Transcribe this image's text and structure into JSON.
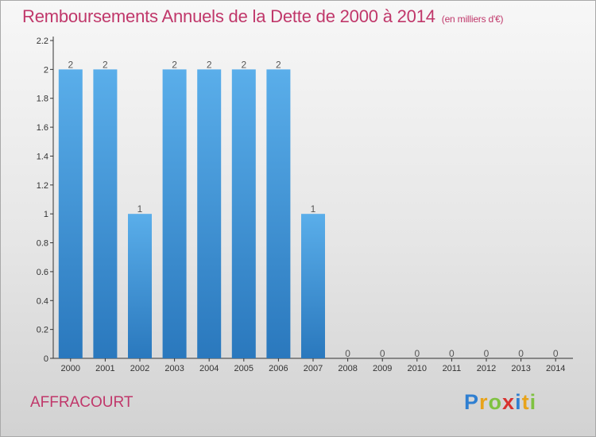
{
  "chart_data": {
    "type": "bar",
    "title": "Remboursements Annuels de la Dette de 2000 à 2014",
    "subtitle": "(en milliers d'€)",
    "xlabel": "",
    "ylabel": "",
    "categories": [
      "2000",
      "2001",
      "2002",
      "2003",
      "2004",
      "2005",
      "2006",
      "2007",
      "2008",
      "2009",
      "2010",
      "2011",
      "2012",
      "2013",
      "2014"
    ],
    "values": [
      2,
      2,
      1,
      2,
      2,
      2,
      2,
      1,
      0,
      0,
      0,
      0,
      0,
      0,
      0
    ],
    "data_labels": [
      "2",
      "2",
      "1",
      "2",
      "2",
      "2",
      "2",
      "1",
      "0",
      "0",
      "0",
      "0",
      "0",
      "0",
      "0"
    ],
    "ylim": [
      0,
      2.2
    ],
    "yticks": [
      0,
      0.2,
      0.4,
      0.6,
      0.8,
      1,
      1.2,
      1.4,
      1.6,
      1.8,
      2,
      2.2
    ],
    "ytick_labels": [
      "0",
      "0.2",
      "0.4",
      "0.6",
      "0.8",
      "1",
      "1.2",
      "1.4",
      "1.6",
      "1.8",
      "2",
      "2.2"
    ],
    "grid": false,
    "bar_color": "#3a8fd6"
  },
  "commune": "AFFRACOURT",
  "logo": {
    "letters": [
      "P",
      "r",
      "o",
      "x",
      "i",
      "t",
      "i"
    ],
    "colors": [
      "#2f7fd1",
      "#e8a31a",
      "#7fc241",
      "#d8322f",
      "#2f7fd1",
      "#e8a31a",
      "#7fc241"
    ]
  },
  "colors": {
    "title": "#c0376a",
    "bar_top": "#5aaeea",
    "bar_bottom": "#2a78bd"
  }
}
